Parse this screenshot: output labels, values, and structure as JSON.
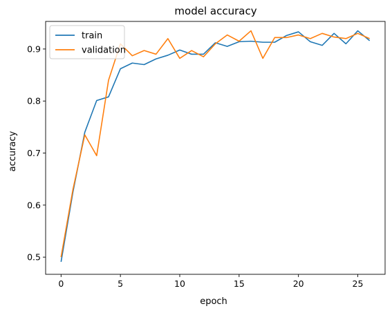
{
  "chart_data": {
    "type": "line",
    "title": "model accuracy",
    "xlabel": "epoch",
    "ylabel": "accuracy",
    "xlim": [
      -1.3,
      27.3
    ],
    "ylim": [
      0.467,
      0.953
    ],
    "xticks": [
      0,
      5,
      10,
      15,
      20,
      25
    ],
    "yticks": [
      0.5,
      0.6,
      0.7,
      0.8,
      0.9
    ],
    "ytick_labels": [
      "0.5",
      "0.6",
      "0.7",
      "0.8",
      "0.9"
    ],
    "grid": false,
    "legend": "top-left",
    "x": [
      0,
      1,
      2,
      3,
      4,
      5,
      6,
      7,
      8,
      9,
      10,
      11,
      12,
      13,
      14,
      15,
      16,
      17,
      18,
      19,
      20,
      21,
      22,
      23,
      24,
      25,
      26
    ],
    "series": [
      {
        "name": "train",
        "color": "#1f77b4",
        "values": [
          0.491,
          0.625,
          0.74,
          0.801,
          0.808,
          0.862,
          0.873,
          0.87,
          0.881,
          0.888,
          0.898,
          0.89,
          0.89,
          0.912,
          0.905,
          0.914,
          0.915,
          0.913,
          0.913,
          0.926,
          0.933,
          0.914,
          0.907,
          0.93,
          0.91,
          0.935,
          0.916
        ]
      },
      {
        "name": "validation",
        "color": "#ff7f0e",
        "values": [
          0.5,
          0.63,
          0.735,
          0.695,
          0.84,
          0.91,
          0.887,
          0.897,
          0.89,
          0.92,
          0.882,
          0.897,
          0.885,
          0.91,
          0.927,
          0.915,
          0.935,
          0.882,
          0.922,
          0.922,
          0.927,
          0.92,
          0.93,
          0.923,
          0.92,
          0.93,
          0.92
        ]
      }
    ]
  }
}
